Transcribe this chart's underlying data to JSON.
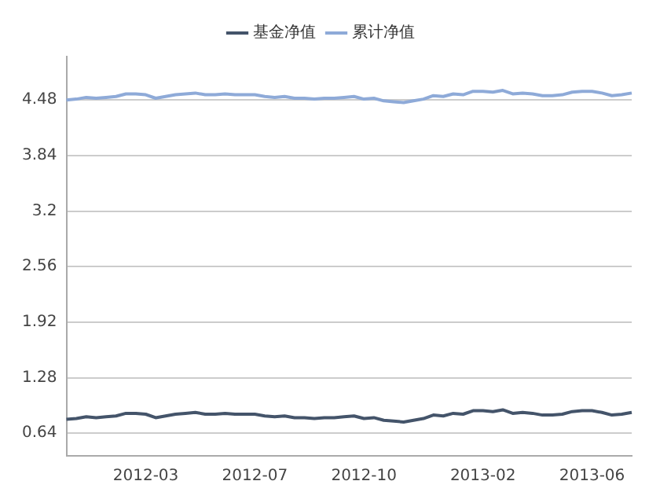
{
  "chart_data": {
    "type": "line",
    "categories": [
      null,
      null,
      null,
      null,
      null,
      null,
      null,
      null,
      "2012-03",
      null,
      null,
      null,
      null,
      null,
      null,
      null,
      null,
      null,
      null,
      "2012-07",
      null,
      null,
      null,
      null,
      null,
      null,
      null,
      null,
      null,
      null,
      "2012-10",
      null,
      null,
      null,
      null,
      null,
      null,
      null,
      null,
      null,
      null,
      null,
      "2013-02",
      null,
      null,
      null,
      null,
      null,
      null,
      null,
      null,
      null,
      null,
      "2013-06",
      null,
      null,
      null,
      null
    ],
    "series": [
      {
        "name": "基金净值",
        "color": "#44546a",
        "values": [
          0.8,
          0.81,
          0.83,
          0.82,
          0.83,
          0.84,
          0.87,
          0.87,
          0.86,
          0.82,
          0.84,
          0.86,
          0.87,
          0.88,
          0.86,
          0.86,
          0.87,
          0.86,
          0.86,
          0.86,
          0.84,
          0.83,
          0.84,
          0.82,
          0.82,
          0.81,
          0.82,
          0.82,
          0.83,
          0.84,
          0.81,
          0.82,
          0.79,
          0.78,
          0.77,
          0.79,
          0.81,
          0.85,
          0.84,
          0.87,
          0.86,
          0.9,
          0.9,
          0.89,
          0.91,
          0.87,
          0.88,
          0.87,
          0.85,
          0.85,
          0.86,
          0.89,
          0.9,
          0.9,
          0.88,
          0.85,
          0.86,
          0.88
        ]
      },
      {
        "name": "累计净值",
        "color": "#8eaad8",
        "values": [
          4.48,
          4.49,
          4.51,
          4.5,
          4.51,
          4.52,
          4.55,
          4.55,
          4.54,
          4.5,
          4.52,
          4.54,
          4.55,
          4.56,
          4.54,
          4.54,
          4.55,
          4.54,
          4.54,
          4.54,
          4.52,
          4.51,
          4.52,
          4.5,
          4.5,
          4.49,
          4.5,
          4.5,
          4.51,
          4.52,
          4.49,
          4.5,
          4.47,
          4.46,
          4.45,
          4.47,
          4.49,
          4.53,
          4.52,
          4.55,
          4.54,
          4.58,
          4.58,
          4.57,
          4.59,
          4.55,
          4.56,
          4.55,
          4.53,
          4.53,
          4.54,
          4.57,
          4.58,
          4.58,
          4.56,
          4.53,
          4.54,
          4.56
        ]
      }
    ],
    "ylim": [
      0.38,
      4.98
    ],
    "yticks": [
      0.64,
      1.28,
      1.92,
      2.56,
      3.2,
      3.84,
      4.48
    ],
    "grid": "y",
    "legend": "top",
    "marker": "none",
    "line_style": "solid"
  }
}
